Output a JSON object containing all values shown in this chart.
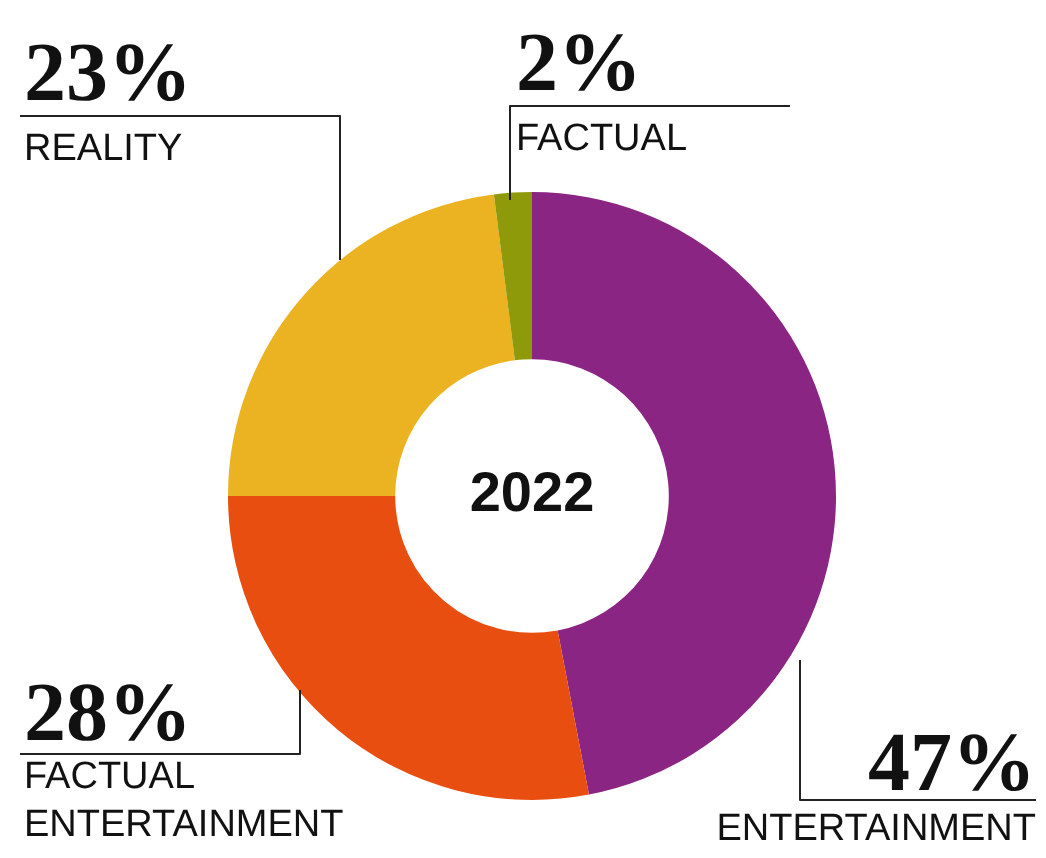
{
  "chart_data": {
    "type": "donut",
    "title": "2022",
    "categories": [
      "ENTERTAINMENT",
      "FACTUAL ENTERTAINMENT",
      "REALITY",
      "FACTUAL"
    ],
    "values": [
      47,
      28,
      23,
      2
    ],
    "value_labels": [
      "47%",
      "28%",
      "23%",
      "2%"
    ],
    "colors": [
      "#8b2584",
      "#e84e10",
      "#ebb321",
      "#8f9a0a"
    ],
    "legend": false
  }
}
